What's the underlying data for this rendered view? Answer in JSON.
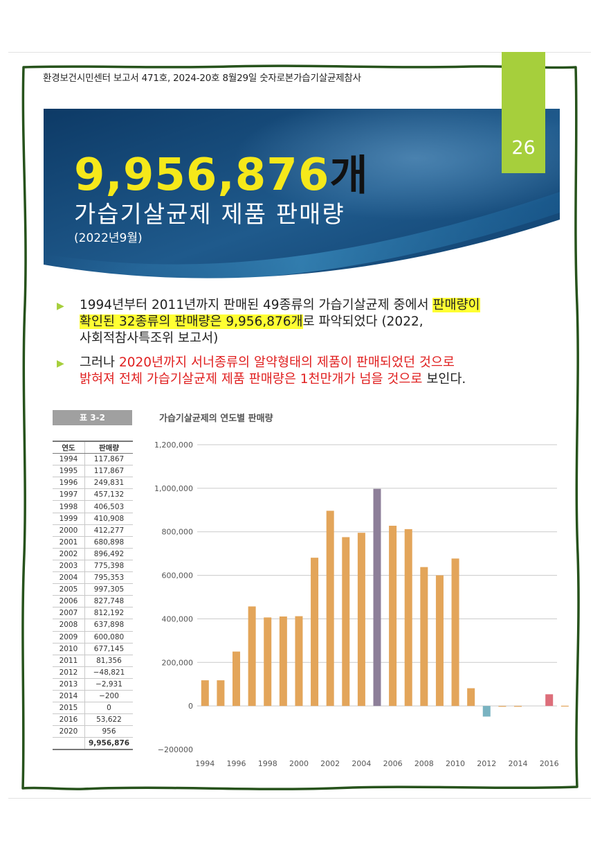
{
  "header": "환경보건시민센터 보고서 471호, 2024-20호 8월29일 숫자로본가습기살균제참사",
  "page_number": "26",
  "hero": {
    "number": "9,956,876",
    "unit": "개",
    "title": "가습기살균제 제품 판매량",
    "subtitle": "(2022년9월)"
  },
  "bullets": [
    {
      "pre": "1994년부터 2011년까지 판매된 49종류의 가습기살균제 중에서 ",
      "highlight_a": "판매량이",
      "highlight_b": "확인된 32종류의 판매량은 9,956,876개",
      "post": "로 파악되었다 (2022,",
      "line3": "사회적참사특조위 보고서)"
    },
    {
      "pre": "그러나 ",
      "red_a": "2020년까지 서너종류의 알약형태의 제품이 판매되었던 것으로",
      "red_b": "밝혀져 전체 가습기살균제 제품 판매량은 1천만개가 넘을 것으로",
      "post": " 보인다."
    }
  ],
  "table": {
    "caption": "표 3-2",
    "headers": [
      "연도",
      "판매량"
    ],
    "rows": [
      [
        "1994",
        "117,867"
      ],
      [
        "1995",
        "117,867"
      ],
      [
        "1996",
        "249,831"
      ],
      [
        "1997",
        "457,132"
      ],
      [
        "1998",
        "406,503"
      ],
      [
        "1999",
        "410,908"
      ],
      [
        "2000",
        "412,277"
      ],
      [
        "2001",
        "680,898"
      ],
      [
        "2002",
        "896,492"
      ],
      [
        "2003",
        "775,398"
      ],
      [
        "2004",
        "795,353"
      ],
      [
        "2005",
        "997,305"
      ],
      [
        "2006",
        "827,748"
      ],
      [
        "2007",
        "812,192"
      ],
      [
        "2008",
        "637,898"
      ],
      [
        "2009",
        "600,080"
      ],
      [
        "2010",
        "677,145"
      ],
      [
        "2011",
        "81,356"
      ],
      [
        "2012",
        "−48,821"
      ],
      [
        "2013",
        "−2,931"
      ],
      [
        "2014",
        "−200"
      ],
      [
        "2015",
        "0"
      ],
      [
        "2016",
        "53,622"
      ],
      [
        "2020",
        "956"
      ]
    ],
    "total": "9,956,876"
  },
  "chart_data": {
    "type": "bar",
    "title": "가습기살균제의 연도별 판매량",
    "xlabel": "",
    "ylabel": "",
    "categories": [
      "1994",
      "1995",
      "1996",
      "1997",
      "1998",
      "1999",
      "2000",
      "2001",
      "2002",
      "2003",
      "2004",
      "2005",
      "2006",
      "2007",
      "2008",
      "2009",
      "2010",
      "2011",
      "2012",
      "2013",
      "2014",
      "2015",
      "2016",
      "2020"
    ],
    "values": [
      117867,
      117867,
      249831,
      457132,
      406503,
      410908,
      412277,
      680898,
      896492,
      775398,
      795353,
      997305,
      827748,
      812192,
      637898,
      600080,
      677145,
      81356,
      -48821,
      -2931,
      -200,
      0,
      53622,
      956
    ],
    "ylim": [
      -200000,
      1200000
    ],
    "yticks": [
      1200000,
      1000000,
      800000,
      600000,
      400000,
      200000,
      0,
      -200000
    ],
    "ytick_labels": [
      "1,200,000",
      "1,000,000",
      "800,000",
      "600,000",
      "400,000",
      "200,000",
      "0",
      "−200000"
    ],
    "xtick_labels": [
      "1994",
      "1996",
      "1998",
      "2000",
      "2002",
      "2004",
      "2006",
      "2008",
      "2010",
      "2012",
      "2014",
      "2016"
    ],
    "grid": true,
    "colors": {
      "default": "#e3a55a",
      "2005": "#8d7f99",
      "2012": "#79b3c1",
      "2016": "#dd6e7a"
    }
  },
  "colors": {
    "accent_green": "#a6cf3c",
    "hero_yellow": "#f5e81a",
    "highlight": "#ffff33",
    "red_text": "#e02020",
    "banner_dark": "#0d3a66",
    "banner_light": "#2f6e9c"
  }
}
